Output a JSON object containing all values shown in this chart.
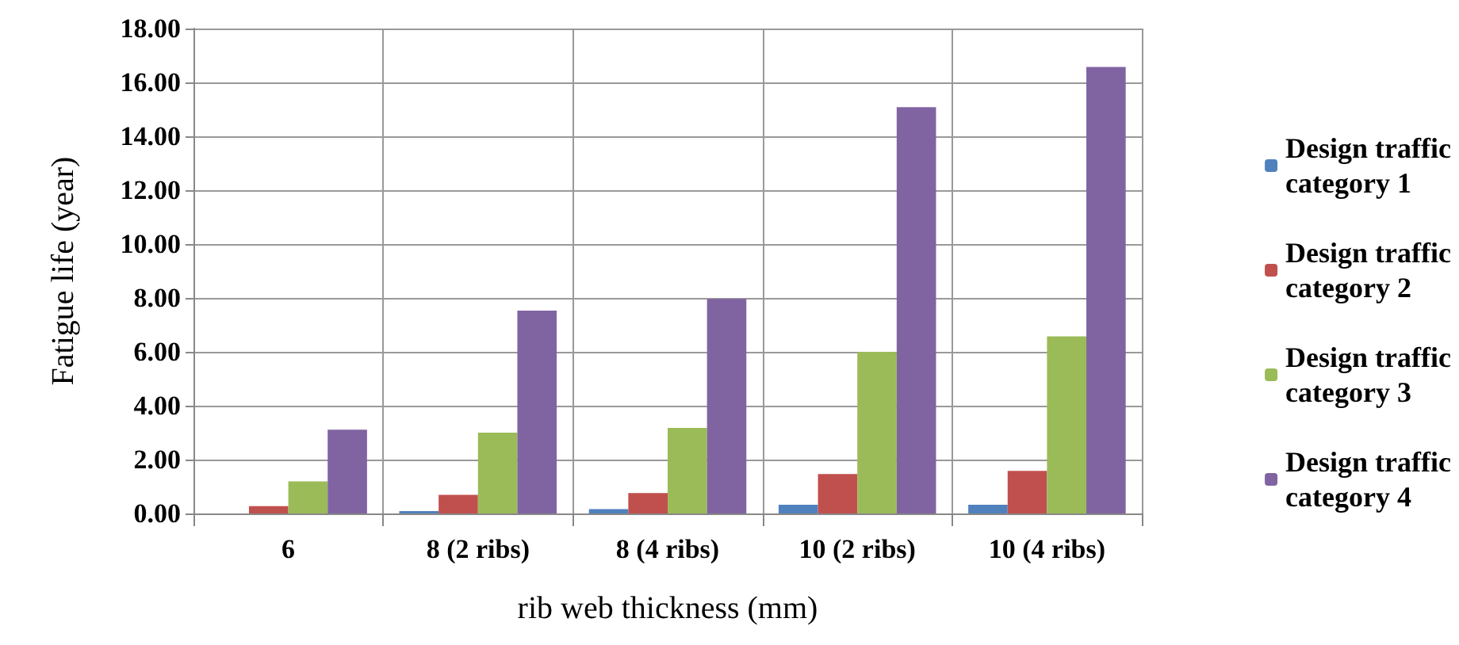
{
  "chart_data": {
    "type": "bar",
    "xlabel": "rib web thickness (mm)",
    "ylabel": "Fatigue life (year)",
    "categories": [
      "6",
      "8 (2 ribs)",
      "8 (4 ribs)",
      "10 (2 ribs)",
      "10 (4 ribs)"
    ],
    "series": [
      {
        "name": "Design traffic category 1",
        "color": "#4f81bd",
        "values": [
          0,
          0.09,
          0.16,
          0.32,
          0.32
        ]
      },
      {
        "name": "Design traffic category 2",
        "color": "#c0504d",
        "values": [
          0.27,
          0.69,
          0.76,
          1.46,
          1.58
        ]
      },
      {
        "name": "Design traffic category 3",
        "color": "#9bbb59",
        "values": [
          1.19,
          3.0,
          3.18,
          6.0,
          6.57
        ]
      },
      {
        "name": "Design traffic category 4",
        "color": "#8064a2",
        "values": [
          3.11,
          7.53,
          7.96,
          15.08,
          16.57
        ]
      }
    ],
    "ylim": [
      0,
      18
    ],
    "yticks": [
      {
        "value": 0,
        "label": "0.00"
      },
      {
        "value": 2,
        "label": "2.00"
      },
      {
        "value": 4,
        "label": "4.00"
      },
      {
        "value": 6,
        "label": "6.00"
      },
      {
        "value": 8,
        "label": "8.00"
      },
      {
        "value": 10,
        "label": "10.00"
      },
      {
        "value": 12,
        "label": "12.00"
      },
      {
        "value": 14,
        "label": "14.00"
      },
      {
        "value": 16,
        "label": "16.00"
      },
      {
        "value": 18,
        "label": "18.00"
      }
    ],
    "grid": true,
    "legend": "right"
  }
}
